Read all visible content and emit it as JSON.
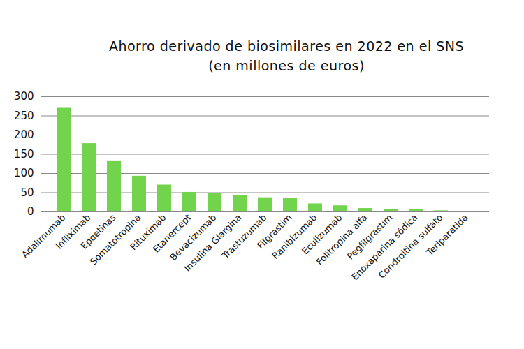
{
  "chart_data": {
    "type": "bar",
    "title": "Ahorro derivado de biosimilares en 2022 en el SNS",
    "subtitle": "(en millones de euros)",
    "categories": [
      "Adalimumab",
      "Infliximab",
      "Epoetinas",
      "Somatotropina",
      "Rituximab",
      "Etanercept",
      "Bevacizumab",
      "Insulina Glargina",
      "Trastuzumab",
      "Filgrastim",
      "Ranibizumab",
      "Eculizumab",
      "Folitropina alfa",
      "Pegfilgrastim",
      "Enoxaparina sódica",
      "Condroitina sulfato",
      "Teriparatida"
    ],
    "values": [
      270,
      178,
      133,
      93,
      70,
      51,
      48,
      42,
      37,
      35,
      21,
      16,
      9,
      7,
      7,
      3,
      1
    ],
    "color": "#72d44c",
    "ylim": [
      0,
      300
    ],
    "yticks": [
      0,
      50,
      100,
      150,
      200,
      250,
      300
    ],
    "grid": true
  }
}
